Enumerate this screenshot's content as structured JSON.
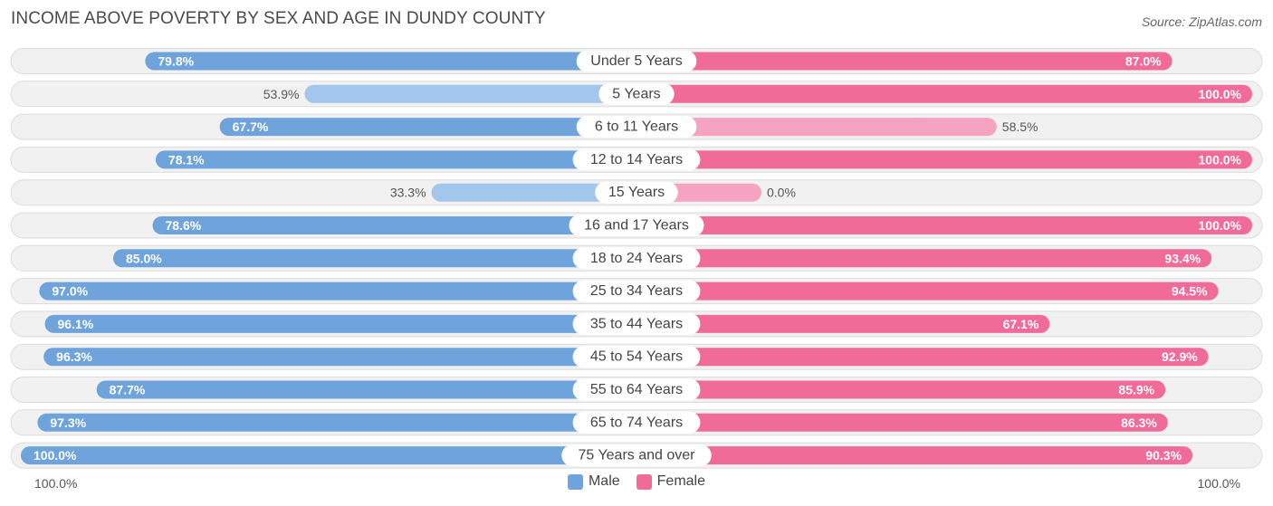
{
  "header": {
    "title": "INCOME ABOVE POVERTY BY SEX AND AGE IN DUNDY COUNTY",
    "source": "Source: ZipAtlas.com"
  },
  "axis": {
    "left_label": "100.0%",
    "right_label": "100.0%"
  },
  "legend": {
    "male": "Male",
    "female": "Female"
  },
  "colors": {
    "male_strong": "#6fa3dc",
    "male_light": "#a3c6ec",
    "female_strong": "#f06b97",
    "female_light": "#f5a3c0",
    "track": "#f1f1f1",
    "track_border": "#dcdcdc"
  },
  "chart_data": {
    "type": "bar",
    "title": "INCOME ABOVE POVERTY BY SEX AND AGE IN DUNDY COUNTY",
    "categories": [
      "Under 5 Years",
      "5 Years",
      "6 to 11 Years",
      "12 to 14 Years",
      "15 Years",
      "16 and 17 Years",
      "18 to 24 Years",
      "25 to 34 Years",
      "35 to 44 Years",
      "45 to 54 Years",
      "55 to 64 Years",
      "65 to 74 Years",
      "75 Years and over"
    ],
    "series": [
      {
        "name": "Male",
        "values": [
          79.8,
          53.9,
          67.7,
          78.1,
          33.3,
          78.6,
          85.0,
          97.0,
          96.1,
          96.3,
          87.7,
          97.3,
          100.0
        ],
        "labels": [
          "79.8%",
          "53.9%",
          "67.7%",
          "78.1%",
          "33.3%",
          "78.6%",
          "85.0%",
          "97.0%",
          "96.1%",
          "96.3%",
          "87.7%",
          "97.3%",
          "100.0%"
        ]
      },
      {
        "name": "Female",
        "values": [
          87.0,
          100.0,
          58.5,
          100.0,
          0.0,
          100.0,
          93.4,
          94.5,
          67.1,
          92.9,
          85.9,
          86.3,
          90.3
        ],
        "labels": [
          "87.0%",
          "100.0%",
          "58.5%",
          "100.0%",
          "0.0%",
          "100.0%",
          "93.4%",
          "94.5%",
          "67.1%",
          "92.9%",
          "85.9%",
          "86.3%",
          "90.3%"
        ]
      }
    ],
    "xlim": [
      0,
      100
    ],
    "legend_position": "bottom-center"
  }
}
